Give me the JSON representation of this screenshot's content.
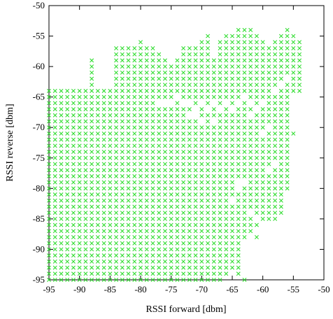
{
  "chart_data": {
    "type": "scatter",
    "title": "",
    "xlabel": "RSSI forward [dbm]",
    "ylabel": "RSSI reverse [dbm]",
    "xlim": [
      -95,
      -50
    ],
    "ylim": [
      -95,
      -50
    ],
    "xticks": [
      -95,
      -90,
      -85,
      -80,
      -75,
      -70,
      -65,
      -60,
      -55,
      -50
    ],
    "yticks": [
      -95,
      -90,
      -85,
      -80,
      -75,
      -70,
      -65,
      -60,
      -55,
      -50
    ],
    "grid": false,
    "legend": "none",
    "marker": "x",
    "color": "#33dd33",
    "series": [
      {
        "rows": [
          [
            -95,
            -95,
            -64
          ],
          [
            -94,
            -95,
            -65
          ],
          [
            -93,
            -95,
            -68
          ],
          [
            -92,
            -95,
            -68
          ],
          [
            -91,
            -95,
            -71
          ],
          [
            -90,
            -95,
            -71
          ],
          [
            -89,
            -95,
            -72
          ],
          [
            -88,
            -95,
            -72
          ],
          [
            -87,
            -95,
            -71
          ],
          [
            -86,
            -95,
            -70
          ],
          [
            -85,
            -95,
            -72
          ],
          [
            -84,
            -95,
            -73
          ],
          [
            -83,
            -95,
            -74
          ],
          [
            -82,
            -95,
            -74
          ],
          [
            -81,
            -95,
            -73
          ],
          [
            -80,
            -95,
            -73
          ],
          [
            -79,
            -95,
            -74
          ],
          [
            -78,
            -95,
            -75
          ],
          [
            -77,
            -95,
            -75
          ],
          [
            -76,
            -95,
            -73
          ],
          [
            -75,
            -95,
            -72
          ],
          [
            -74,
            -95,
            -74
          ],
          [
            -73,
            -95,
            -73
          ],
          [
            -72,
            -95,
            -74
          ],
          [
            -71,
            -95,
            -75
          ],
          [
            -70,
            -93,
            -75
          ],
          [
            -69,
            -93,
            -75
          ],
          [
            -68,
            -93,
            -73
          ],
          [
            -67,
            -93,
            -73
          ],
          [
            -66,
            -94,
            -73
          ],
          [
            -65,
            -93,
            -74
          ],
          [
            -64,
            -94,
            -73
          ],
          [
            -63,
            -88,
            -71
          ],
          [
            -62,
            -87,
            -72
          ],
          [
            -61,
            -86,
            -71
          ],
          [
            -60,
            -86,
            -72
          ],
          [
            -59,
            -85,
            -73
          ],
          [
            -58,
            -85,
            -75
          ],
          [
            -57,
            -84,
            -69
          ],
          [
            -56,
            -80,
            -68
          ]
        ],
        "left_x": [
          -95,
          -94,
          -93,
          -92,
          -91,
          -90,
          -89,
          -88,
          -87,
          -86,
          -85,
          -84,
          -83,
          -82,
          -81,
          -80,
          -79,
          -78,
          -77,
          -76,
          -75,
          -74,
          -73,
          -72,
          -71,
          -70,
          -69,
          -68,
          -67,
          -66,
          -65,
          -64,
          -63,
          -62,
          -61,
          -60,
          -59,
          -58,
          -57,
          -56
        ],
        "top_points": [
          [
            -88,
            -59
          ],
          [
            -84,
            -57
          ],
          [
            -83,
            -57
          ],
          [
            -82,
            -57
          ],
          [
            -81,
            -57
          ],
          [
            -80,
            -56
          ],
          [
            -79,
            -57
          ],
          [
            -78,
            -57
          ],
          [
            -77,
            -58
          ],
          [
            -76,
            -59
          ],
          [
            -75,
            -60
          ],
          [
            -74,
            -59
          ],
          [
            -73,
            -57
          ],
          [
            -72,
            -57
          ],
          [
            -71,
            -57
          ],
          [
            -70,
            -56
          ],
          [
            -69,
            -55
          ],
          [
            -68,
            -59
          ],
          [
            -67,
            -56
          ],
          [
            -66,
            -55
          ],
          [
            -65,
            -55
          ],
          [
            -64,
            -54
          ],
          [
            -63,
            -54
          ],
          [
            -62,
            -54
          ],
          [
            -61,
            -55
          ],
          [
            -60,
            -56
          ],
          [
            -59,
            -57
          ],
          [
            -58,
            -56
          ],
          [
            -57,
            -55
          ],
          [
            -56,
            -54
          ],
          [
            -55,
            -55
          ],
          [
            -54,
            -56
          ]
        ],
        "right_points": [
          [
            -54,
            -61
          ],
          [
            -54,
            -62
          ],
          [
            -54,
            -63
          ],
          [
            -55,
            -64
          ],
          [
            -56,
            -65
          ],
          [
            -56,
            -66
          ],
          [
            -57,
            -67
          ],
          [
            -58,
            -68
          ],
          [
            -57,
            -69
          ],
          [
            -56,
            -70
          ],
          [
            -55,
            -71
          ],
          [
            -58,
            -72
          ],
          [
            -59,
            -73
          ],
          [
            -60,
            -74
          ],
          [
            -59,
            -75
          ],
          [
            -60,
            -76
          ],
          [
            -60,
            -77
          ],
          [
            -60,
            -78
          ],
          [
            -61,
            -79
          ],
          [
            -62,
            -80
          ],
          [
            -62,
            -81
          ],
          [
            -62,
            -82
          ],
          [
            -63,
            -83
          ],
          [
            -63,
            -84
          ],
          [
            -65,
            -85
          ],
          [
            -66,
            -86
          ],
          [
            -66,
            -87
          ],
          [
            -66,
            -88
          ],
          [
            -65,
            -89
          ],
          [
            -65,
            -90
          ],
          [
            -65,
            -91
          ],
          [
            -66,
            -92
          ],
          [
            -66,
            -93
          ],
          [
            -66,
            -94
          ],
          [
            -67,
            -95
          ]
        ],
        "holes": [
          [
            -77,
            -66
          ],
          [
            -76,
            -66
          ],
          [
            -75,
            -66
          ],
          [
            -74,
            -65
          ],
          [
            -73,
            -66
          ],
          [
            -72,
            -66
          ],
          [
            -71,
            -67
          ],
          [
            -70,
            -66
          ],
          [
            -69,
            -67
          ],
          [
            -68,
            -66
          ],
          [
            -67,
            -67
          ],
          [
            -66,
            -66
          ],
          [
            -65,
            -67
          ],
          [
            -64,
            -66
          ],
          [
            -63,
            -65
          ],
          [
            -62,
            -66
          ],
          [
            -72,
            -68
          ],
          [
            -71,
            -68
          ],
          [
            -70,
            -69
          ],
          [
            -68,
            -69
          ],
          [
            -64,
            -79
          ],
          [
            -63,
            -79
          ],
          [
            -64,
            -80
          ],
          [
            -65,
            -82
          ],
          [
            -61,
            -85
          ],
          [
            -62,
            -84
          ],
          [
            -60,
            -86
          ],
          [
            -59,
            -70
          ],
          [
            -60,
            -71
          ],
          [
            -58,
            -76
          ],
          [
            -59,
            -77
          ],
          [
            -62,
            -68
          ],
          [
            -61,
            -67
          ],
          [
            -60,
            -66
          ],
          [
            -58,
            -64
          ],
          [
            -57,
            -63
          ],
          [
            -56,
            -62
          ]
        ],
        "extra_points": [
          [
            -61,
            -88
          ],
          [
            -58,
            -75
          ],
          [
            -59,
            -74
          ],
          [
            -56,
            -71
          ],
          [
            -57,
            -66
          ],
          [
            -59,
            -66
          ],
          [
            -60,
            -64
          ],
          [
            -62,
            -59
          ],
          [
            -67,
            -93
          ],
          [
            -66,
            -94
          ],
          [
            -63,
            -95
          ],
          [
            -64,
            -94
          ]
        ]
      }
    ]
  }
}
